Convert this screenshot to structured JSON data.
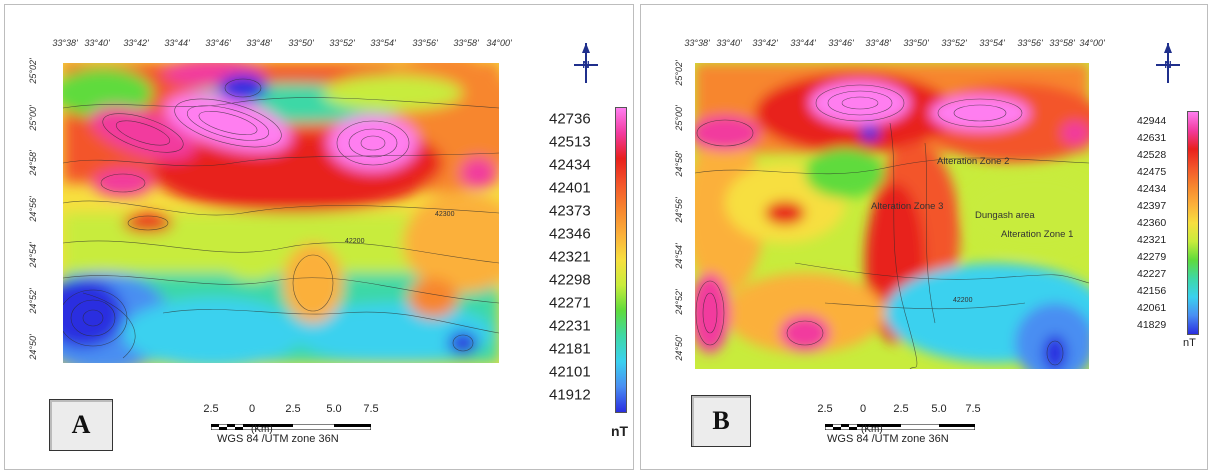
{
  "panel_a": {
    "letter": "A",
    "x_ticks": [
      "33°38'",
      "33°40'",
      "33°42'",
      "33°44'",
      "33°46'",
      "33°48'",
      "33°50'",
      "33°52'",
      "33°54'",
      "33°56'",
      "33°58'",
      "34°00'"
    ],
    "y_ticks": [
      "25°02'",
      "25°00'",
      "24°58'",
      "24°56'",
      "24°54'",
      "24°52'",
      "24°50'"
    ],
    "legend_values": [
      "42736",
      "42513",
      "42434",
      "42401",
      "42373",
      "42346",
      "42321",
      "42298",
      "42271",
      "42231",
      "42181",
      "42101",
      "41912"
    ],
    "unit": "nT",
    "scale_numbers": [
      "2.5",
      "0",
      "2.5",
      "5.0",
      "7.5"
    ],
    "scale_unit": "(Km)",
    "datum": "WGS 84 /UTM zone 36N",
    "contour_labels": [
      "42200",
      "42300"
    ]
  },
  "panel_b": {
    "letter": "B",
    "x_ticks": [
      "33°38'",
      "33°40'",
      "33°42'",
      "33°44'",
      "33°46'",
      "33°48'",
      "33°50'",
      "33°52'",
      "33°54'",
      "33°56'",
      "33°58'",
      "34°00'"
    ],
    "y_ticks": [
      "25°02'",
      "25°00'",
      "24°58'",
      "24°56'",
      "24°54'",
      "24°52'",
      "24°50'"
    ],
    "legend_values": [
      "42944",
      "42631",
      "42528",
      "42475",
      "42434",
      "42397",
      "42360",
      "42321",
      "42279",
      "42227",
      "42156",
      "42061",
      "41829"
    ],
    "unit": "nT",
    "scale_numbers": [
      "2.5",
      "0",
      "2.5",
      "5.0",
      "7.5"
    ],
    "scale_unit": "(Km)",
    "datum": "WGS 84 /UTM zone 36N",
    "zones": [
      "Alteration Zone 2",
      "Alteration Zone 3",
      "Dungash area",
      "Alteration Zone 1"
    ],
    "contour_labels": [
      "42200"
    ]
  },
  "colors": {
    "ramp": [
      "#ff7ef0",
      "#f23a9e",
      "#e8201c",
      "#f3552a",
      "#f7862e",
      "#fbb03a",
      "#f7df3f",
      "#c8ec3c",
      "#5fdb3c",
      "#3ed8a6",
      "#3ad1ef",
      "#4a8ef2",
      "#2a2ee0"
    ]
  }
}
